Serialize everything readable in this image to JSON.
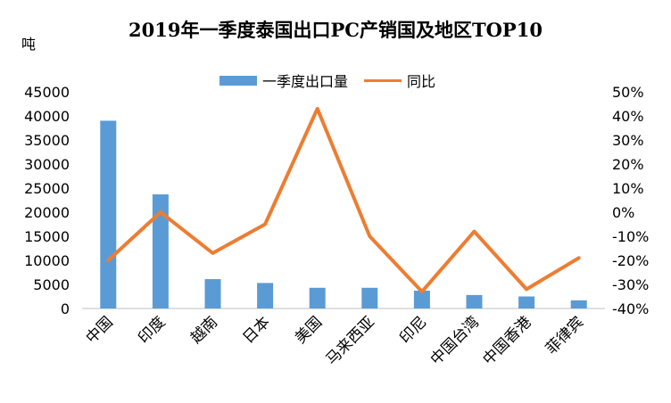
{
  "chart_data": {
    "type": "bar",
    "title": "2019年一季度泰国出口PC产销国及地区TOP10",
    "ylabel": "吨",
    "categories": [
      "中国",
      "印度",
      "越南",
      "日本",
      "美国",
      "马来西亚",
      "印尼",
      "中国台湾",
      "中国香港",
      "菲律宾"
    ],
    "series": [
      {
        "name": "一季度出口量",
        "type": "bar",
        "axis": "left",
        "color": "#5b9bd5",
        "values": [
          39000,
          23700,
          6100,
          5300,
          4300,
          4300,
          3700,
          2800,
          2500,
          1700
        ]
      },
      {
        "name": "同比",
        "type": "line",
        "axis": "right",
        "color": "#ed7d31",
        "values": [
          -20,
          0,
          -17,
          -5,
          43,
          -10,
          -33,
          -8,
          -32,
          -19
        ]
      }
    ],
    "ylim": [
      0,
      45000
    ],
    "y2lim": [
      -40,
      50
    ],
    "yticks": [
      "45000",
      "40000",
      "35000",
      "30000",
      "25000",
      "20000",
      "15000",
      "10000",
      "5000",
      "0"
    ],
    "y2ticks": [
      "50%",
      "40%",
      "30%",
      "20%",
      "10%",
      "0%",
      "-10%",
      "-20%",
      "-30%",
      "-40%"
    ],
    "legend_position": "top"
  }
}
